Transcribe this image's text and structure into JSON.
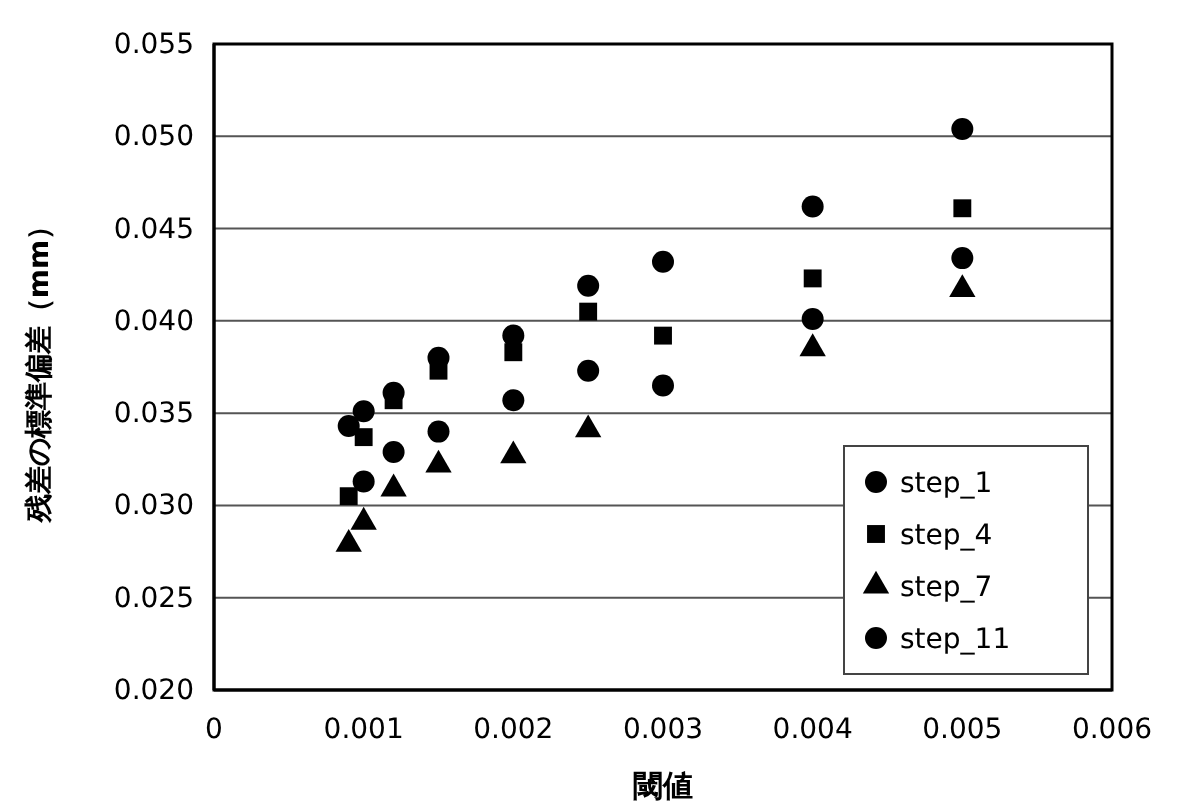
{
  "chart_data": {
    "type": "scatter",
    "xlabel": "閾値",
    "ylabel": "残差の標準偏差（mm）",
    "x": [
      0.0009,
      0.001,
      0.0012,
      0.0015,
      0.002,
      0.0025,
      0.003,
      0.004,
      0.005
    ],
    "xlim": [
      0,
      0.006
    ],
    "xticks": [
      0,
      0.001,
      0.002,
      0.003,
      0.004,
      0.005,
      0.006
    ],
    "ylim": [
      0.02,
      0.055
    ],
    "yticks": [
      {
        "value": 0.02,
        "label": "0.020"
      },
      0.025,
      {
        "value": 0.03,
        "label": "0.030"
      },
      0.035,
      {
        "value": 0.04,
        "label": "0.040"
      },
      0.045,
      {
        "value": 0.05,
        "label": "0.050"
      },
      0.055
    ],
    "grid": "y",
    "legend": "bottom right",
    "series": [
      {
        "name": "step_1",
        "color": "#000000",
        "marker": "circle",
        "values": [
          0.0343,
          0.0351,
          0.0361,
          0.038,
          0.0392,
          0.0419,
          0.0432,
          0.0462,
          0.0504
        ]
      },
      {
        "name": "step_4",
        "color": "#000000",
        "marker": "square",
        "values": [
          0.0305,
          0.0337,
          0.0357,
          0.0373,
          0.0383,
          0.0405,
          0.0392,
          0.0423,
          0.0461
        ]
      },
      {
        "name": "step_7",
        "color": "#000000",
        "marker": "triangle",
        "values": [
          0.0279,
          0.0291,
          0.0309,
          0.0322,
          0.0327,
          0.0341,
          null,
          0.0385,
          0.0417
        ]
      },
      {
        "name": "step_11",
        "color": "#000000",
        "marker": "circle",
        "values": [
          null,
          0.0313,
          0.0329,
          0.034,
          0.0357,
          0.0373,
          0.0365,
          0.0401,
          0.0434
        ]
      }
    ]
  }
}
